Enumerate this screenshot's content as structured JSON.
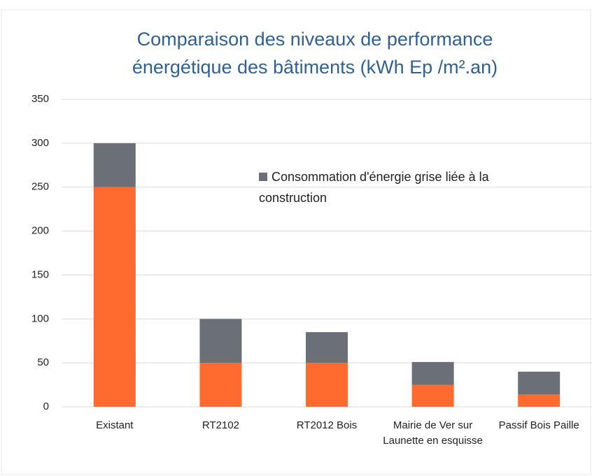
{
  "chart_data": {
    "type": "stacked_bar",
    "title": "Comparaison des niveaux de performance énergétique des bâtiments (kWh Ep /m².an)",
    "categories": [
      "Existant",
      "RT2102",
      "RT2012 Bois",
      "Mairie de Ver sur Launette en esquisse",
      "Passif Bois Paille"
    ],
    "series": [
      {
        "color": "#ff6a2e",
        "values": [
          250,
          50,
          50,
          25,
          14
        ]
      },
      {
        "name": "Consommation d'énergie grise liée à la construction",
        "color": "#6a6f78",
        "values": [
          50,
          50,
          35,
          26,
          26
        ]
      }
    ],
    "ylim": [
      0,
      350
    ],
    "yticks": [
      0,
      50,
      100,
      150,
      200,
      250,
      300,
      350
    ],
    "grid": true
  }
}
